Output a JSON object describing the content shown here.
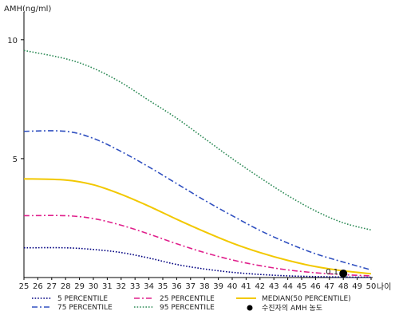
{
  "chart_data": {
    "type": "line",
    "ylabel": "AMH(ng/ml)",
    "xlabel": "나이",
    "xlim": [
      25,
      50
    ],
    "ylim": [
      0,
      11
    ],
    "y_ticks": [
      5,
      10
    ],
    "x_ticks": [
      25,
      26,
      27,
      28,
      29,
      30,
      31,
      32,
      33,
      34,
      35,
      36,
      37,
      38,
      39,
      40,
      41,
      42,
      43,
      44,
      45,
      46,
      47,
      48,
      49,
      50
    ],
    "grid": false,
    "legend_position": "bottom",
    "series": [
      {
        "name": "5 PERCENTILE",
        "color": "#000080",
        "dash": "dotted",
        "x": [
          25,
          28,
          30,
          32,
          34,
          36,
          38,
          40,
          42,
          44,
          46,
          48,
          50
        ],
        "y": [
          1.25,
          1.25,
          1.18,
          1.05,
          0.82,
          0.55,
          0.36,
          0.22,
          0.13,
          0.07,
          0.04,
          0.02,
          0.01
        ]
      },
      {
        "name": "25 PERCENTILE",
        "color": "#e0208c",
        "dash": "dashdot",
        "x": [
          25,
          28,
          30,
          32,
          34,
          36,
          38,
          40,
          42,
          44,
          46,
          48,
          50
        ],
        "y": [
          2.6,
          2.6,
          2.48,
          2.2,
          1.83,
          1.42,
          1.05,
          0.74,
          0.5,
          0.32,
          0.2,
          0.12,
          0.07
        ]
      },
      {
        "name": "MEDIAN(50 PERCENTILE)",
        "color": "#f2c800",
        "dash": "solid",
        "x": [
          25,
          28,
          30,
          32,
          34,
          36,
          38,
          40,
          42,
          44,
          46,
          48,
          50
        ],
        "y": [
          4.15,
          4.1,
          3.9,
          3.5,
          3.0,
          2.45,
          1.93,
          1.45,
          1.05,
          0.72,
          0.46,
          0.28,
          0.16
        ]
      },
      {
        "name": "75 PERCENTILE",
        "color": "#3050c0",
        "dash": "dashdot",
        "x": [
          25,
          28,
          30,
          32,
          34,
          36,
          38,
          40,
          42,
          44,
          46,
          48,
          50
        ],
        "y": [
          6.15,
          6.15,
          5.85,
          5.3,
          4.65,
          3.95,
          3.25,
          2.6,
          1.98,
          1.45,
          1.0,
          0.65,
          0.32
        ]
      },
      {
        "name": "95 PERCENTILE",
        "color": "#2e8b57",
        "dash": "dotted",
        "x": [
          25,
          28,
          30,
          32,
          34,
          36,
          38,
          40,
          42,
          44,
          46,
          48,
          50
        ],
        "y": [
          9.55,
          9.2,
          8.8,
          8.2,
          7.45,
          6.7,
          5.85,
          5.0,
          4.2,
          3.45,
          2.8,
          2.3,
          2.0
        ]
      }
    ],
    "marker": {
      "name": "수진자의 AMH 농도",
      "x": 48,
      "y": 0.1,
      "label": "0.1",
      "color": "#000000"
    }
  }
}
